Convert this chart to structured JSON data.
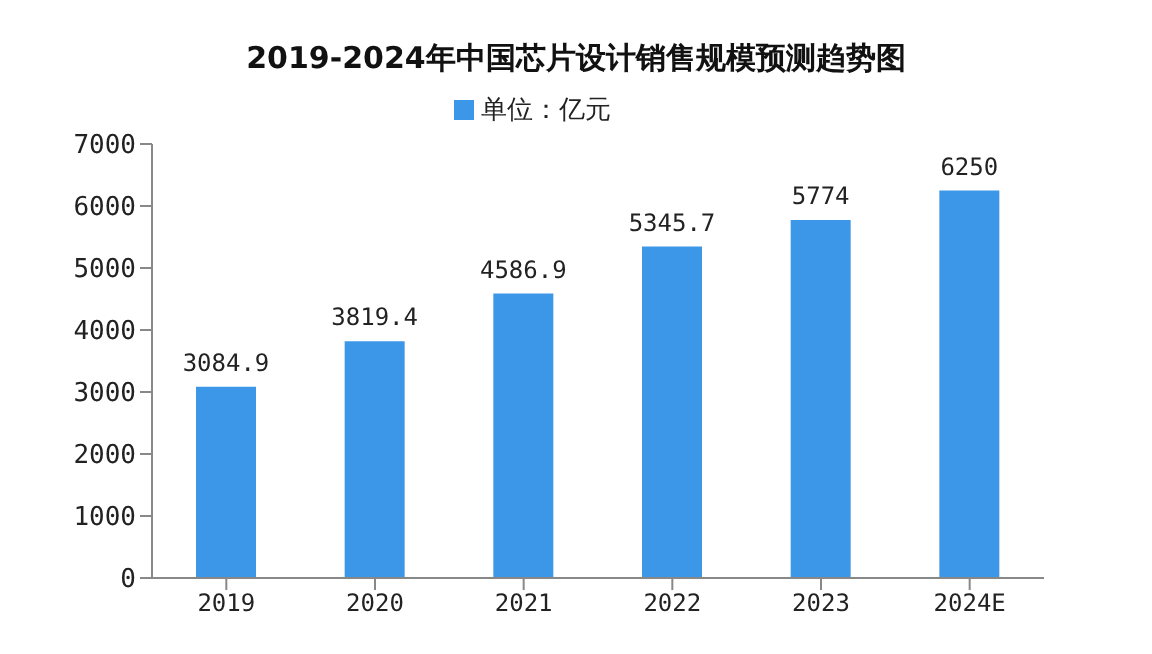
{
  "chart_data": {
    "type": "bar",
    "title": "2019-2024年中国芯片设计销售规模预测趋势图",
    "categories": [
      "2019",
      "2020",
      "2021",
      "2022",
      "2023",
      "2024E"
    ],
    "series": [
      {
        "name": "单位：亿元",
        "color": "#3d97e8",
        "values": [
          3084.9,
          3819.4,
          4586.9,
          5345.7,
          5774,
          6250
        ]
      }
    ],
    "ylim": [
      0,
      7000
    ],
    "yticks": [
      0,
      1000,
      2000,
      3000,
      4000,
      5000,
      6000,
      7000
    ],
    "data_labels": true,
    "grid": false,
    "legend": "top"
  }
}
